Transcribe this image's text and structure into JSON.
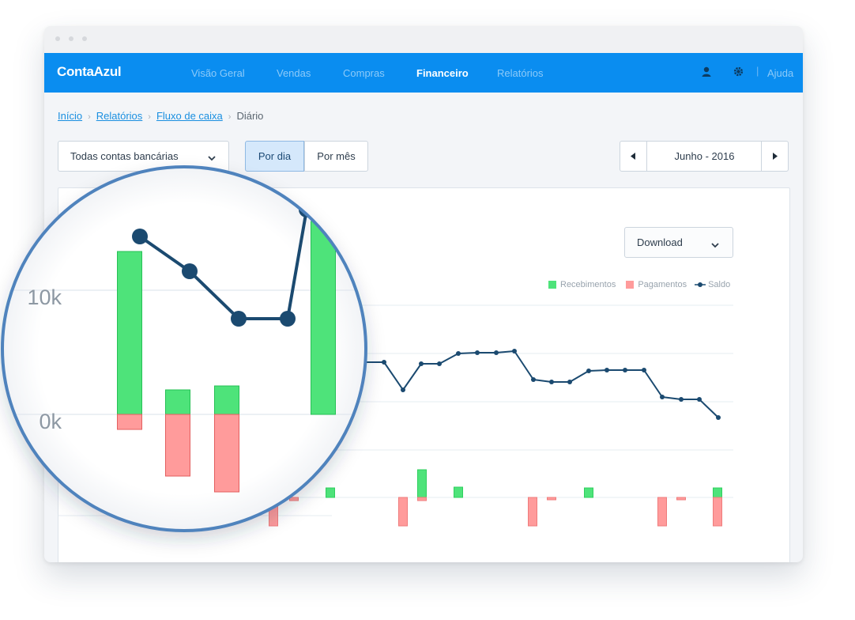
{
  "app": {
    "logo": "ContaAzul",
    "nav": [
      {
        "label": "Visão Geral",
        "active": false
      },
      {
        "label": "Vendas",
        "active": false
      },
      {
        "label": "Compras",
        "active": false
      },
      {
        "label": "Financeiro",
        "active": true
      },
      {
        "label": "Relatórios",
        "active": false
      }
    ],
    "user_icon": "user-icon",
    "settings_icon": "gear-icon",
    "help_label": "Ajuda"
  },
  "breadcrumb": {
    "items": [
      "Início",
      "Relatórios",
      "Fluxo de caixa"
    ],
    "current": "Diário"
  },
  "filters": {
    "account_select": "Todas contas bancárias",
    "view_day": "Por dia",
    "view_month": "Por mês",
    "active_view": "day",
    "period": "Junho - 2016"
  },
  "download_label": "Download",
  "colors": {
    "brand": "#0a8df0",
    "recebimentos": "#4ee37a",
    "pagamentos": "#ff9b9b",
    "saldo": "#1b4a70"
  },
  "chart_data": {
    "type": "line+bar",
    "legend": [
      "Recebimentos",
      "Pagamentos",
      "Saldo"
    ],
    "saldo_points": [
      [
        460,
        458
      ],
      [
        486,
        458
      ],
      [
        510,
        493
      ],
      [
        533,
        460
      ],
      [
        556,
        460
      ],
      [
        580,
        447
      ],
      [
        604,
        446
      ],
      [
        628,
        446
      ],
      [
        651,
        444
      ],
      [
        675,
        480
      ],
      [
        698,
        483
      ],
      [
        721,
        483
      ],
      [
        745,
        469
      ],
      [
        768,
        468
      ],
      [
        791,
        468
      ],
      [
        815,
        468
      ],
      [
        838,
        502
      ],
      [
        862,
        505
      ],
      [
        885,
        505
      ],
      [
        909,
        528
      ]
    ],
    "recebimentos_bars": [
      [
        418,
        617,
        629
      ],
      [
        534,
        594,
        629
      ],
      [
        580,
        616,
        629
      ],
      [
        745,
        617,
        629
      ],
      [
        908,
        617,
        629
      ]
    ],
    "pagamentos_bars": [
      [
        346,
        629,
        665
      ],
      [
        372,
        629,
        633
      ],
      [
        510,
        629,
        665
      ],
      [
        534,
        629,
        633
      ],
      [
        674,
        629,
        665
      ],
      [
        698,
        629,
        632
      ],
      [
        838,
        629,
        665
      ],
      [
        862,
        629,
        632
      ],
      [
        908,
        629,
        665
      ]
    ],
    "magnifier": {
      "ylabels": [
        "10k",
        "0k"
      ],
      "saldo_points": [
        [
          177,
          299
        ],
        [
          240,
          343
        ],
        [
          302,
          403
        ],
        [
          364,
          403
        ],
        [
          388,
          265
        ]
      ],
      "recebimentos_bars": [
        [
          164,
          318,
          524
        ],
        [
          225,
          493,
          524
        ],
        [
          287,
          488,
          524
        ],
        [
          409,
          280,
          524
        ]
      ],
      "pagamentos_bars": [
        [
          164,
          524,
          543
        ],
        [
          225,
          524,
          602
        ],
        [
          287,
          524,
          622
        ]
      ]
    }
  }
}
